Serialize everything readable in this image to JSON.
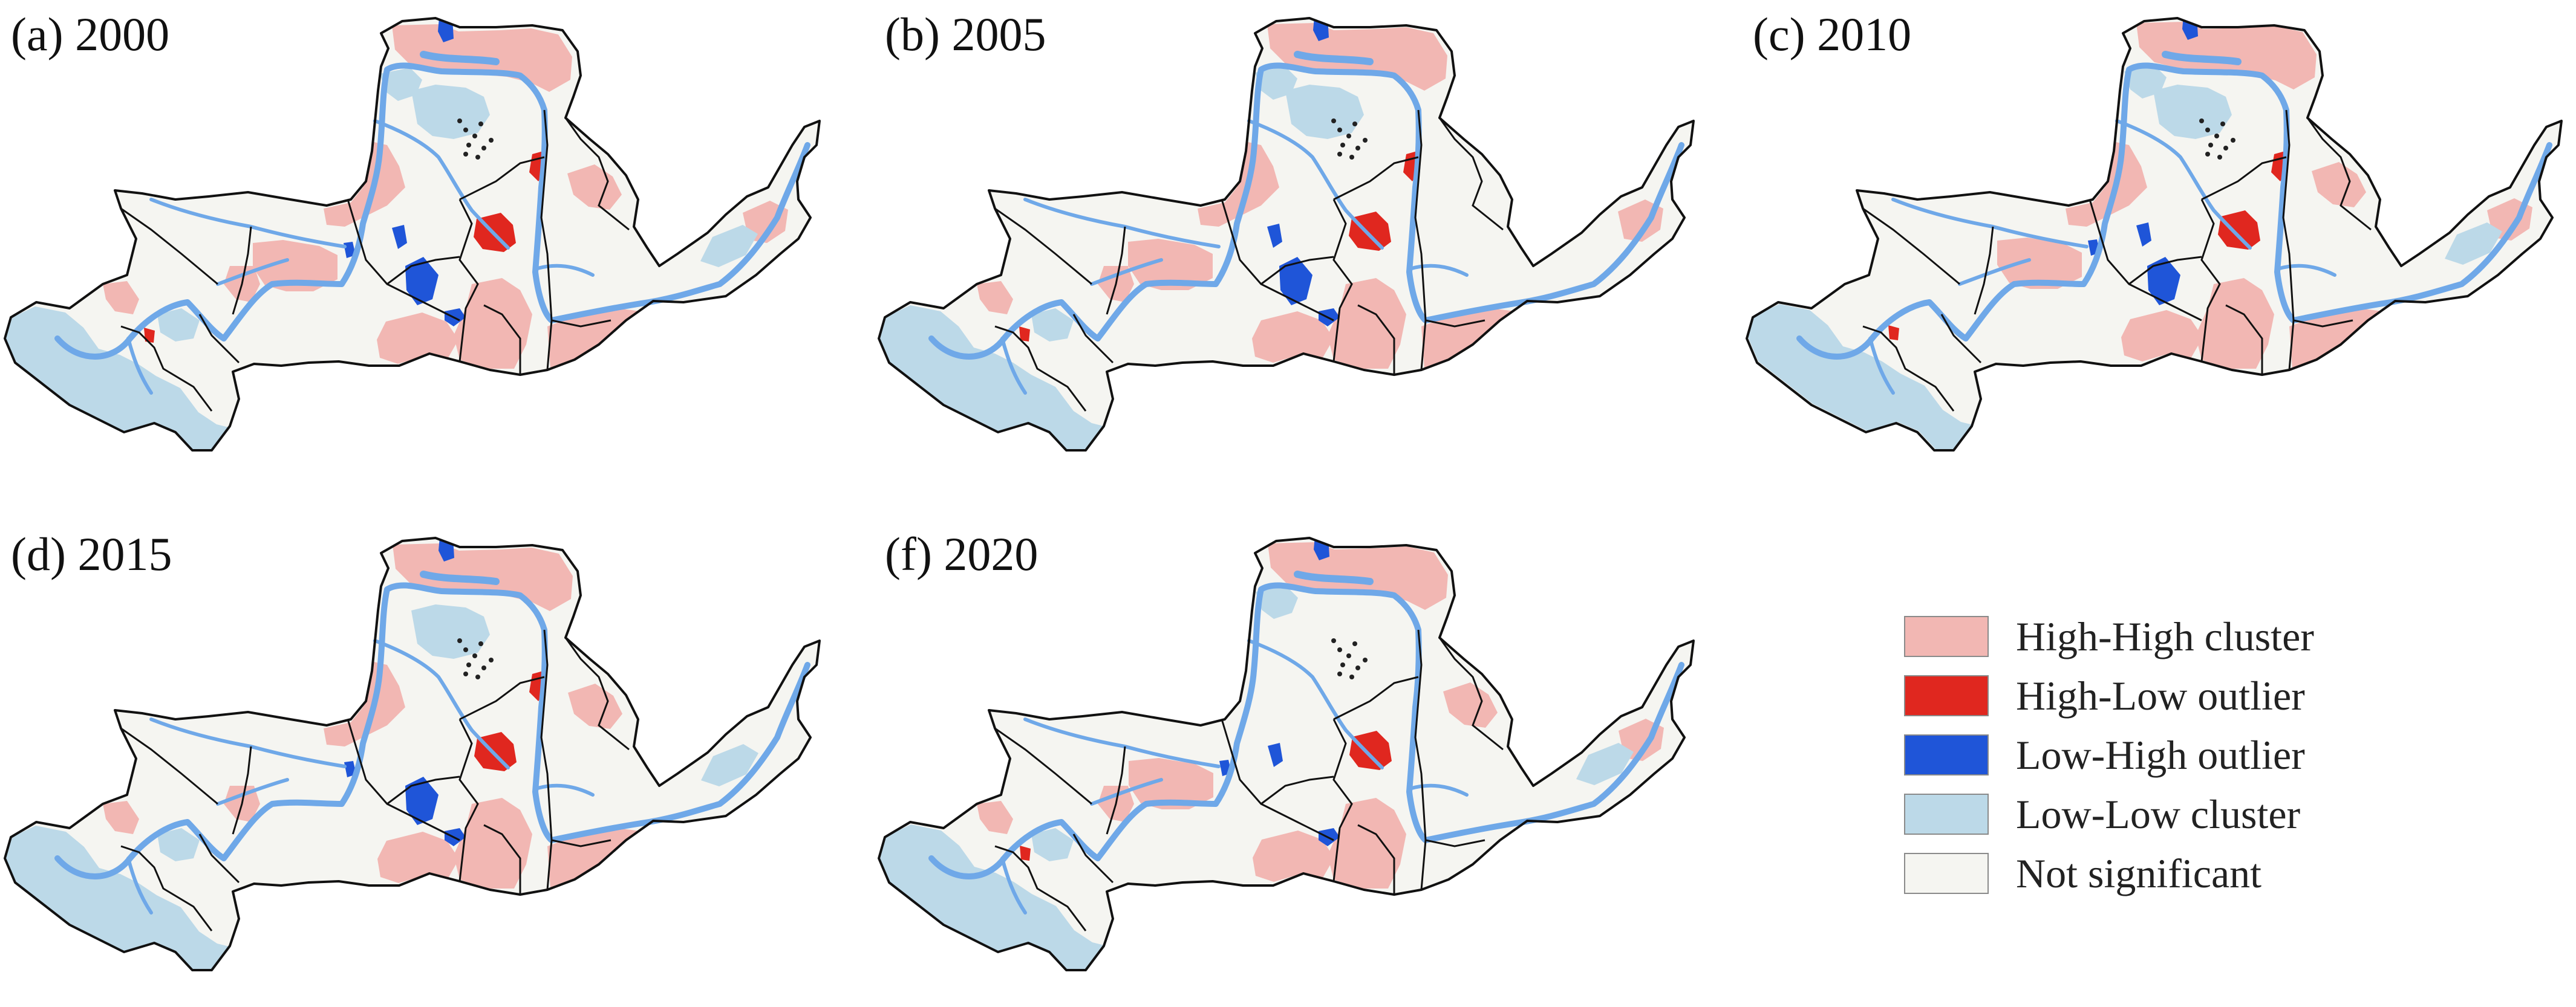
{
  "colors": {
    "high_high": "#f2b7b3",
    "high_low": "#e0271f",
    "low_high": "#1f55d8",
    "low_low": "#bcd9e8",
    "not_significant": "#f5f5f1",
    "river": "#6fa8e8",
    "border": "#111111"
  },
  "panels": [
    {
      "label": "(a) 2000",
      "variant": 0
    },
    {
      "label": "(b) 2005",
      "variant": 1
    },
    {
      "label": "(c) 2010",
      "variant": 2
    },
    {
      "label": "(d) 2015",
      "variant": 3
    },
    {
      "label": "(f) 2020",
      "variant": 4
    }
  ],
  "legend": {
    "items": [
      {
        "label": "High-High cluster",
        "color": "#f2b7b3"
      },
      {
        "label": "High-Low outlier",
        "color": "#e0271f"
      },
      {
        "label": "Low-High outlier",
        "color": "#1f55d8"
      },
      {
        "label": "Low-Low cluster",
        "color": "#bcd9e8"
      },
      {
        "label": "Not significant",
        "color": "#f5f5f1"
      }
    ]
  }
}
